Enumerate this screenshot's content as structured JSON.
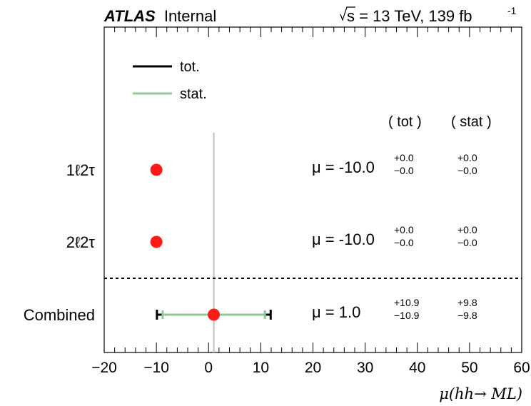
{
  "header": {
    "experiment": "ATLAS",
    "status": "Internal",
    "energy_sqrt": "s",
    "energy_rest": " = 13 TeV, 139 fb",
    "lumi_exponent": "-1"
  },
  "legend": {
    "placement": "top-left",
    "items": [
      {
        "label": "tot.",
        "color": "#000000"
      },
      {
        "label": "stat.",
        "color": "#90c890"
      }
    ]
  },
  "columns": {
    "tot": "( tot )",
    "stat": "( stat )"
  },
  "chart_data": {
    "type": "scatter",
    "title": "",
    "xlabel": "μ(hh→ ML)",
    "ylabel": "",
    "xlim": [
      -20,
      60
    ],
    "x_ticks": [
      -20,
      -10,
      0,
      10,
      20,
      30,
      40,
      50,
      60
    ],
    "reference_line_x": 1.0,
    "separator_after_row": 1,
    "rows": [
      {
        "label": "1ℓ2τ",
        "mu": -10.0,
        "mu_text": "μ = -10.0",
        "tot_up": "+0.0",
        "tot_down": "−0.0",
        "stat_up": "+0.0",
        "stat_down": "−0.0",
        "tot_err": [
          0.0,
          0.0
        ],
        "stat_err": [
          0.0,
          0.0
        ]
      },
      {
        "label": "2ℓ2τ",
        "mu": -10.0,
        "mu_text": "μ = -10.0",
        "tot_up": "+0.0",
        "tot_down": "−0.0",
        "stat_up": "+0.0",
        "stat_down": "−0.0",
        "tot_err": [
          0.0,
          0.0
        ],
        "stat_err": [
          0.0,
          0.0
        ]
      },
      {
        "label": "Combined",
        "mu": 1.0,
        "mu_text": "μ = 1.0",
        "tot_up": "+10.9",
        "tot_down": "−10.9",
        "stat_up": "+9.8",
        "stat_down": "−9.8",
        "tot_err": [
          10.9,
          10.9
        ],
        "stat_err": [
          9.8,
          9.8
        ]
      }
    ],
    "colors": {
      "point": "#ff1a1a",
      "tot": "#000000",
      "stat": "#90c890",
      "reference": "#c0c0c0"
    }
  }
}
